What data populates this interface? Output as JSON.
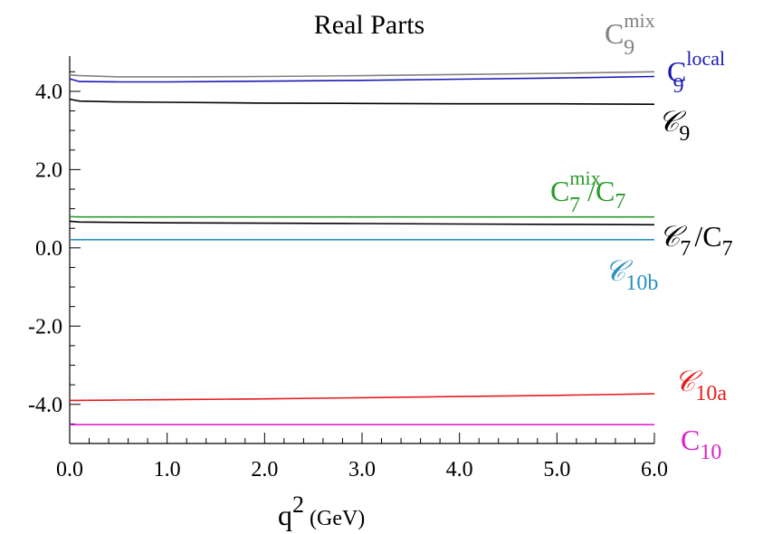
{
  "chart_data": {
    "type": "line",
    "title": "Real Parts",
    "xlabel": {
      "main": "q",
      "sup": "2",
      "unit": "(GeV)"
    },
    "ylabel": "",
    "xlim": [
      0.0,
      6.0
    ],
    "ylim": [
      -5.0,
      4.9
    ],
    "x_ticks": [
      0.0,
      1.0,
      2.0,
      3.0,
      4.0,
      5.0,
      6.0
    ],
    "x_tick_labels": [
      "0.0",
      "1.0",
      "2.0",
      "3.0",
      "4.0",
      "5.0",
      "6.0"
    ],
    "y_ticks": [
      -4.0,
      -2.0,
      0.0,
      2.0,
      4.0
    ],
    "y_tick_labels": [
      "-4.0",
      "-2.0",
      "0.0",
      "2.0",
      "4.0"
    ],
    "grid": false,
    "legend": "inline labels at right end of each curve",
    "series": [
      {
        "color": "#808080",
        "label": {
          "base": "C",
          "sub": "9",
          "sup": "mix",
          "script": false
        },
        "x": [
          0.0,
          0.1,
          0.5,
          1.0,
          2.0,
          3.0,
          4.0,
          5.0,
          6.0
        ],
        "y": [
          4.42,
          4.4,
          4.37,
          4.37,
          4.38,
          4.4,
          4.43,
          4.46,
          4.5
        ]
      },
      {
        "color": "#1a1ab4",
        "label": {
          "base": "C",
          "sub": "9",
          "sup": "local",
          "script": false
        },
        "x": [
          0.0,
          0.1,
          0.5,
          1.0,
          2.0,
          3.0,
          4.0,
          5.0,
          6.0
        ],
        "y": [
          4.32,
          4.25,
          4.24,
          4.24,
          4.26,
          4.28,
          4.31,
          4.34,
          4.38
        ]
      },
      {
        "color": "#000000",
        "label": {
          "base": "𝒞",
          "sub": "9",
          "sup": "",
          "script": true
        },
        "x": [
          0.0,
          0.1,
          0.5,
          1.0,
          2.0,
          3.0,
          4.0,
          5.0,
          6.0
        ],
        "y": [
          3.8,
          3.75,
          3.73,
          3.72,
          3.7,
          3.69,
          3.68,
          3.68,
          3.67
        ]
      },
      {
        "color": "#2a9a2a",
        "label": {
          "base": "C",
          "sub": "7",
          "sup": "mix",
          "script": false,
          "suffix_base": "C",
          "suffix_sub": "7"
        },
        "x": [
          0.0,
          0.1,
          0.5,
          1.0,
          2.0,
          3.0,
          4.0,
          5.0,
          6.0
        ],
        "y": [
          0.8,
          0.79,
          0.79,
          0.79,
          0.79,
          0.79,
          0.79,
          0.79,
          0.79
        ]
      },
      {
        "color": "#000000",
        "label": {
          "base": "𝒞",
          "sub": "7",
          "sup": "",
          "script": true,
          "suffix_base": "C",
          "suffix_sub": "7"
        },
        "x": [
          0.0,
          0.1,
          0.5,
          1.0,
          2.0,
          3.0,
          4.0,
          5.0,
          6.0
        ],
        "y": [
          0.68,
          0.66,
          0.65,
          0.64,
          0.63,
          0.62,
          0.61,
          0.6,
          0.59
        ]
      },
      {
        "color": "#2a8fbf",
        "label": {
          "base": "𝒞",
          "sub": "10b",
          "sup": "",
          "script": true
        },
        "x": [
          0.0,
          1.0,
          2.0,
          3.0,
          4.0,
          5.0,
          6.0
        ],
        "y": [
          0.21,
          0.21,
          0.21,
          0.21,
          0.21,
          0.21,
          0.21
        ]
      },
      {
        "color": "#e61c1c",
        "label": {
          "base": "𝒞",
          "sub": "10a",
          "sup": "",
          "script": true
        },
        "x": [
          0.0,
          0.5,
          1.0,
          2.0,
          3.0,
          4.0,
          5.0,
          6.0
        ],
        "y": [
          -3.9,
          -3.89,
          -3.88,
          -3.86,
          -3.83,
          -3.8,
          -3.77,
          -3.73
        ]
      },
      {
        "color": "#e020c8",
        "label": {
          "base": "C",
          "sub": "10",
          "sup": "",
          "script": false
        },
        "x": [
          0.0,
          1.0,
          2.0,
          3.0,
          4.0,
          5.0,
          6.0
        ],
        "y": [
          -4.52,
          -4.52,
          -4.52,
          -4.52,
          -4.52,
          -4.52,
          -4.52
        ]
      }
    ]
  }
}
